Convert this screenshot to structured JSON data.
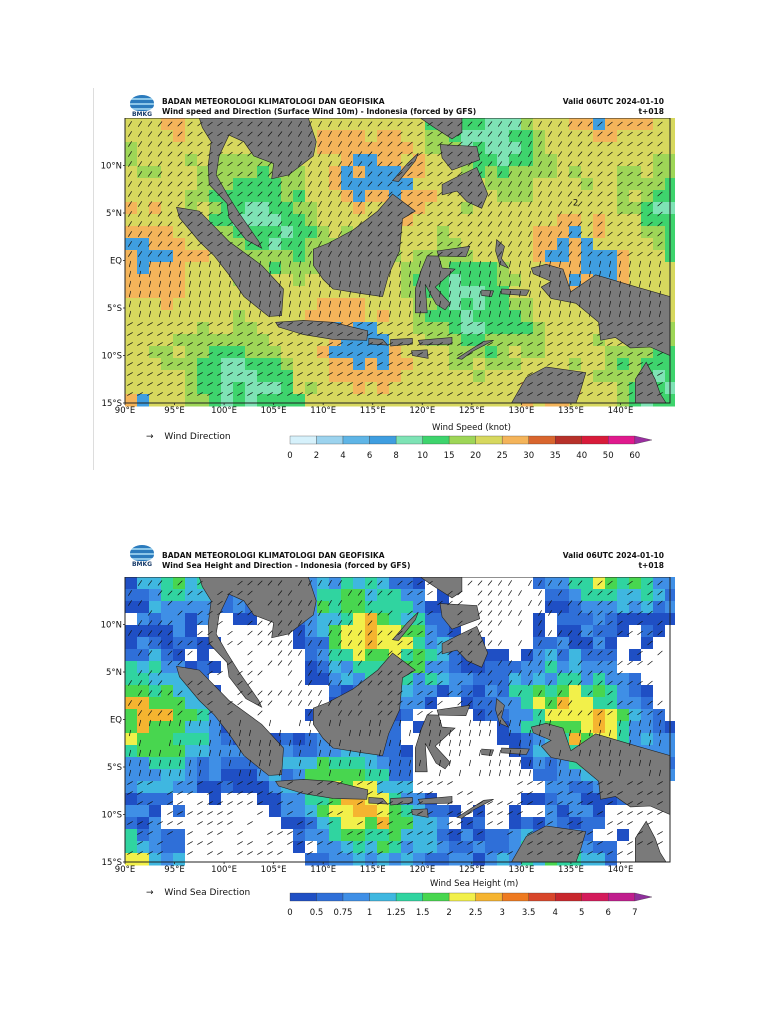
{
  "panels": [
    {
      "org": "BADAN METEOROLOGI KLIMATOLOGI DAN GEOFISIKA",
      "subtitle": "Wind speed and Direction (Surface Wind 10m) - Indonesia (forced by GFS)",
      "valid": "Valid 06UTC 2024-01-10",
      "step": "t+018",
      "logo_text": "BMKG",
      "lat_labels": [
        "10°N",
        "5°N",
        "EQ",
        "5°S",
        "10°S",
        "15°S"
      ],
      "lon_labels": [
        "90°E",
        "95°E",
        "100°E",
        "105°E",
        "110°E",
        "115°E",
        "120°E",
        "125°E",
        "130°E",
        "135°E",
        "140°E"
      ],
      "legend_label": "Wind Direction",
      "colorbar_title": "Wind Speed (knot)",
      "colorbar_ticks": [
        "0",
        "2",
        "4",
        "6",
        "8",
        "10",
        "15",
        "20",
        "25",
        "30",
        "35",
        "40",
        "50",
        "60"
      ],
      "colorbar_colors": [
        "#d6f1fb",
        "#9cd3ee",
        "#5fb5e6",
        "#3f9ee0",
        "#7ee3b5",
        "#3ed46d",
        "#9ed657",
        "#d7d85e",
        "#f4b45a",
        "#d9662e",
        "#b7312a",
        "#d81b3a",
        "#e0198d",
        "#9a2ea0"
      ],
      "map_note": "2"
    },
    {
      "org": "BADAN METEOROLOGI KLIMATOLOGI DAN GEOFISIKA",
      "subtitle": "Wind Sea Height and Direction - Indonesia (forced by GFS)",
      "valid": "Valid 06UTC 2024-01-10",
      "step": "t+018",
      "logo_text": "BMKG",
      "lat_labels": [
        "10°N",
        "5°N",
        "EQ",
        "5°S",
        "10°S",
        "15°S"
      ],
      "lon_labels": [
        "90°E",
        "95°E",
        "100°E",
        "105°E",
        "110°E",
        "115°E",
        "120°E",
        "125°E",
        "130°E",
        "135°E",
        "140°E"
      ],
      "legend_label": "Wind Sea Direction",
      "colorbar_title": "Wind Sea Height (m)",
      "colorbar_ticks": [
        "0",
        "0.5",
        "0.75",
        "1",
        "1.25",
        "1.5",
        "2",
        "2.5",
        "3",
        "3.5",
        "4",
        "5",
        "6",
        "7"
      ],
      "colorbar_colors": [
        "#1f4fc4",
        "#2f6fd8",
        "#3f8fe6",
        "#3fb7e0",
        "#30d4a0",
        "#48d64f",
        "#f2f04a",
        "#f5b430",
        "#ee7a20",
        "#d8462a",
        "#c8262c",
        "#d41b5b",
        "#c01d8d",
        "#8e2f9b"
      ],
      "map_note": ""
    }
  ]
}
